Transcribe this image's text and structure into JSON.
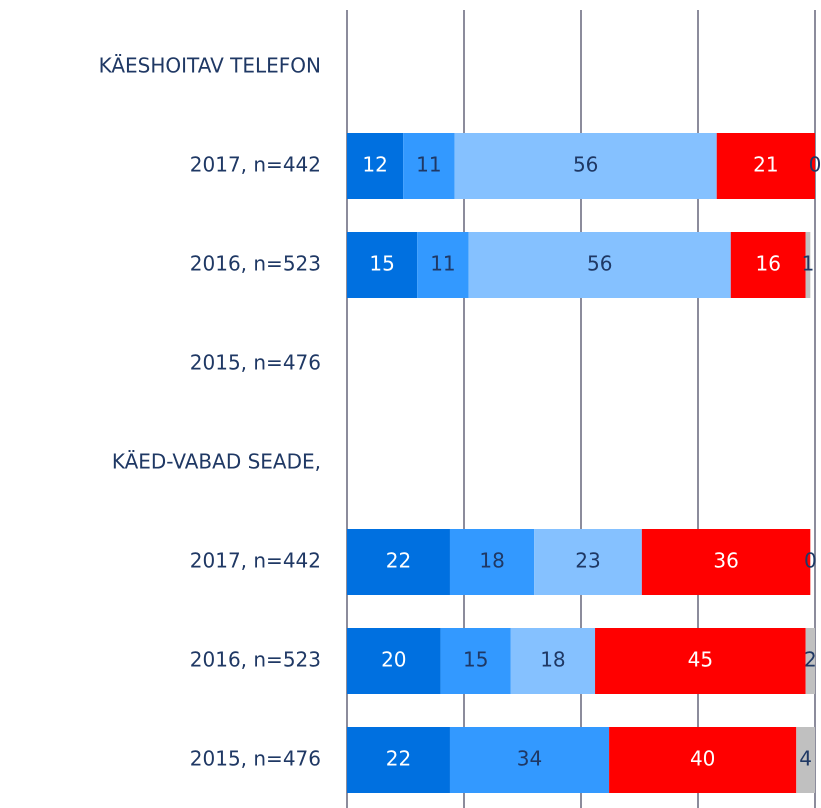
{
  "chart_data": {
    "type": "stacked-bar-horizontal",
    "categories": [
      "KÄESHOITAV TELEFON",
      "2017,  n=442",
      "2016,  n=523",
      "2015,  n=476",
      "KÄED-VABAD SEADE,",
      "2017,  n=442",
      "2016,  n=523",
      "2015,  n=476"
    ],
    "series": [
      {
        "color": "#0070e0",
        "label_color": "#ffffff",
        "values": [
          null,
          12,
          15,
          null,
          null,
          22,
          20,
          22
        ]
      },
      {
        "color": "#3399ff",
        "label_color": "#1f3864",
        "values": [
          null,
          11,
          11,
          null,
          null,
          18,
          15,
          34
        ]
      },
      {
        "color": "#85c1ff",
        "label_color": "#1f3864",
        "values": [
          null,
          56,
          56,
          null,
          null,
          23,
          18,
          null
        ]
      },
      {
        "color": "#ff0000",
        "label_color": "#ffffff",
        "values": [
          null,
          21,
          16,
          null,
          null,
          36,
          45,
          40
        ]
      },
      {
        "color": "#c0c0c0",
        "label_color": "#1f3864",
        "values": [
          null,
          0,
          1,
          null,
          null,
          0,
          2,
          4
        ]
      }
    ],
    "xlim": [
      0,
      100
    ],
    "xticks": [
      0,
      25,
      50,
      75,
      100
    ],
    "grid": true,
    "category_color": "#1f3864",
    "grid_color": "#8c8c9c"
  }
}
